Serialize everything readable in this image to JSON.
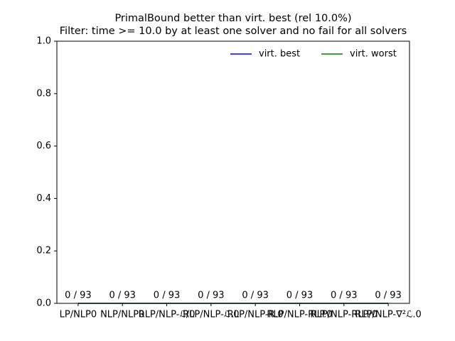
{
  "chart_data": {
    "type": "line",
    "title": "PrimalBound better than virt. best (rel 10.0%)",
    "subtitle": "Filter: time >= 10.0 by at least one solver and no fail for all solvers",
    "categories": [
      "LP/NLP0",
      "NLP/NLP0",
      "RLP/NLP-ℒ/0",
      "RLP/NLP-ℒ.0",
      "RLP/NLP-R.0",
      "RLP/NLP-RLP.0",
      "RLP/NLP-RLP/0",
      "RLP/NLP-∇²ℒ.0"
    ],
    "series": [
      {
        "name": "virt. best",
        "color": "#0000ff",
        "values": [
          0,
          0,
          0,
          0,
          0,
          0,
          0,
          0
        ],
        "value_labels": [
          "0 / 93",
          "0 / 93",
          "0 / 93",
          "0 / 93",
          "0 / 93",
          "0 / 93",
          "0 / 93",
          "0 / 93"
        ]
      },
      {
        "name": "virt. worst",
        "color": "#008000",
        "values": [
          0,
          0,
          0,
          0,
          0,
          0,
          0,
          0
        ]
      }
    ],
    "ylim": [
      0,
      1
    ],
    "yticks": [
      {
        "value": 0,
        "label": "0.0"
      },
      0.2,
      0.4,
      0.6,
      0.8,
      {
        "value": 1,
        "label": "1.0"
      }
    ],
    "legend": "upper right"
  }
}
